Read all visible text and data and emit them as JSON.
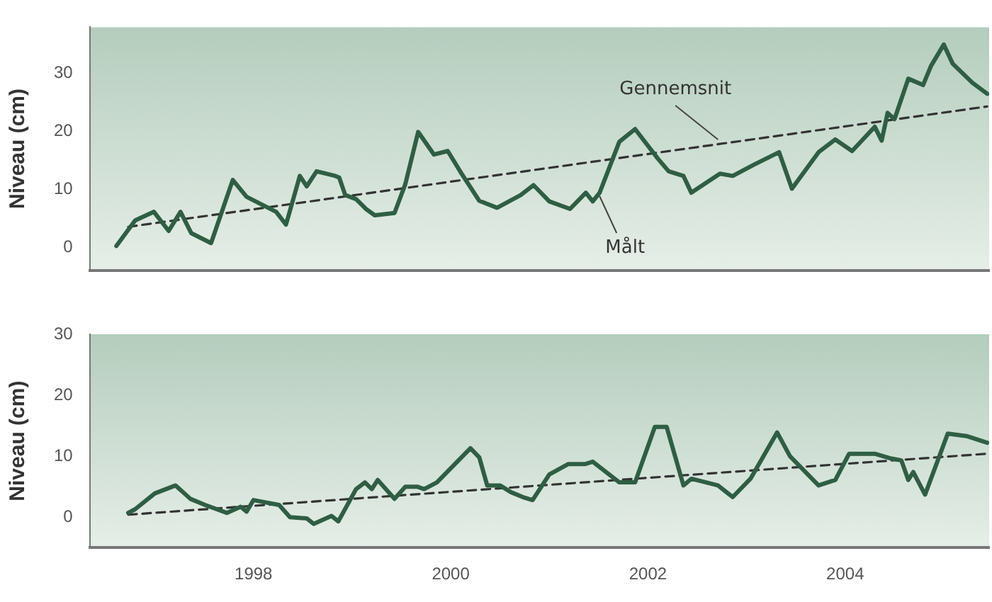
{
  "chart_data": [
    {
      "type": "line",
      "ylabel": "Niveau (cm)",
      "xlim": [
        1996.34,
        2005.46
      ],
      "ylim": [
        -4,
        38
      ],
      "yticks": [
        0,
        10,
        20,
        30
      ],
      "tick_labels": "y",
      "grid": false,
      "legend": false,
      "marker": "none",
      "series": [
        {
          "color": "#2f5e44",
          "line_style": "solid",
          "x": [
            1996.61,
            1996.8,
            1996.99,
            1997.14,
            1997.26,
            1997.37,
            1997.57,
            1997.79,
            1997.93,
            1998.23,
            1998.33,
            1998.47,
            1998.54,
            1998.64,
            1998.83,
            1998.87,
            1998.93,
            1999.04,
            1999.14,
            1999.23,
            1999.43,
            1999.54,
            1999.67,
            1999.83,
            1999.97,
            2000.11,
            2000.29,
            2000.47,
            2000.71,
            2000.84,
            2001.0,
            2001.21,
            2001.37,
            2001.44,
            2001.51,
            2001.71,
            2001.87,
            2002.1,
            2002.21,
            2002.36,
            2002.44,
            2002.73,
            2002.86,
            2003.07,
            2003.33,
            2003.46,
            2003.73,
            2003.9,
            2004.07,
            2004.3,
            2004.37,
            2004.43,
            2004.5,
            2004.64,
            2004.79,
            2004.87,
            2005.0,
            2005.09,
            2005.29,
            2005.44
          ],
          "values": [
            0.2,
            4.6,
            6.1,
            2.8,
            6.1,
            2.4,
            0.7,
            11.6,
            8.7,
            6.1,
            3.9,
            12.3,
            10.5,
            13.1,
            12.3,
            12,
            9,
            8.3,
            6.6,
            5.5,
            5.9,
            10.9,
            19.9,
            16,
            16.6,
            12.7,
            8,
            6.8,
            9,
            10.7,
            7.9,
            6.6,
            9.4,
            7.9,
            9.4,
            18.2,
            20.4,
            15.3,
            13.1,
            12.3,
            9.4,
            12.7,
            12.3,
            14.2,
            16.4,
            10.1,
            16.4,
            18.6,
            16.6,
            20.8,
            18.4,
            23.2,
            22.1,
            29.1,
            28,
            31.3,
            35,
            31.7,
            28.4,
            26.5
          ]
        },
        {
          "color": "#333333",
          "line_style": "dashed",
          "x": [
            1996.73,
            2005.44
          ],
          "values": [
            3.5,
            24.3
          ]
        }
      ],
      "annotations": [
        {
          "text": "Gennemsnit",
          "x": 2002.71,
          "y": 18.6
        },
        {
          "text": "Målt",
          "x": 2001.51,
          "y": 8.8
        }
      ]
    },
    {
      "type": "line",
      "ylabel": "Niveau (cm)",
      "xlim": [
        1996.34,
        2005.46
      ],
      "ylim": [
        -5,
        30
      ],
      "yticks": [
        0,
        10,
        20,
        30
      ],
      "xticks": [
        1998,
        2000,
        2002,
        2004
      ],
      "grid": false,
      "legend": false,
      "marker": "none",
      "series": [
        {
          "color": "#2f5e44",
          "line_style": "solid",
          "x": [
            1996.73,
            1996.8,
            1997.0,
            1997.21,
            1997.36,
            1997.51,
            1997.73,
            1997.87,
            1997.93,
            1998.0,
            1998.26,
            1998.37,
            1998.54,
            1998.61,
            1998.79,
            1998.86,
            1999.04,
            1999.13,
            1999.2,
            1999.26,
            1999.43,
            1999.54,
            1999.66,
            1999.73,
            1999.86,
            2000.2,
            2000.29,
            2000.37,
            2000.5,
            2000.61,
            2000.73,
            2000.83,
            2001.0,
            2001.19,
            2001.36,
            2001.44,
            2001.71,
            2001.87,
            2002.07,
            2002.19,
            2002.36,
            2002.44,
            2002.71,
            2002.86,
            2003.04,
            2003.31,
            2003.44,
            2003.73,
            2003.9,
            2004.04,
            2004.3,
            2004.47,
            2004.57,
            2004.64,
            2004.69,
            2004.81,
            2005.04,
            2005.23,
            2005.44
          ],
          "values": [
            0.7,
            1.3,
            3.9,
            5.2,
            3,
            2,
            0.7,
            1.7,
            0.9,
            2.8,
            2,
            0,
            -0.2,
            -1.1,
            0.2,
            -0.7,
            4.6,
            5.7,
            4.6,
            6.1,
            3,
            5,
            5,
            4.6,
            5.7,
            11.3,
            9.8,
            5.2,
            5.2,
            4.1,
            3.3,
            2.8,
            7,
            8.7,
            8.7,
            9.1,
            5.7,
            5.7,
            14.8,
            14.8,
            5.2,
            6.3,
            5.2,
            3.3,
            6.3,
            13.9,
            10,
            5.2,
            6.1,
            10.4,
            10.4,
            9.6,
            9.3,
            6.1,
            7.4,
            3.7,
            13.7,
            13.3,
            12.2
          ]
        },
        {
          "color": "#333333",
          "line_style": "dashed",
          "x": [
            1996.73,
            2005.44
          ],
          "values": [
            0.4,
            10.4
          ]
        }
      ]
    }
  ]
}
